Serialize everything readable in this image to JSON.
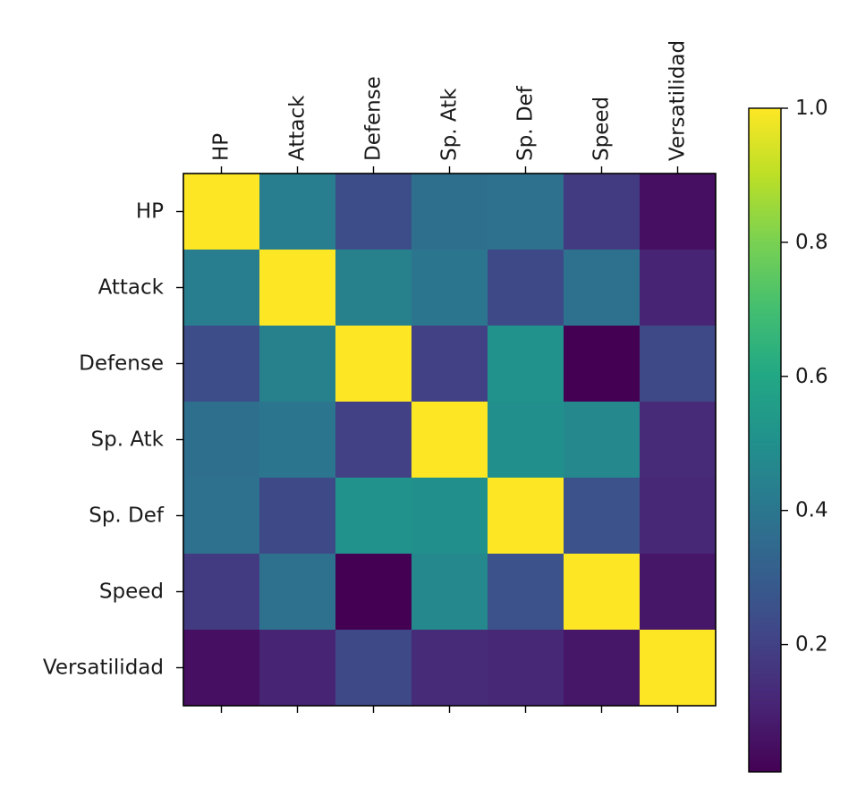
{
  "chart_data": {
    "type": "heatmap",
    "variables": [
      "HP",
      "Attack",
      "Defense",
      "Sp. Atk",
      "Sp. Def",
      "Speed",
      "Versatilidad"
    ],
    "values": [
      [
        1.0,
        0.43,
        0.24,
        0.37,
        0.38,
        0.18,
        0.05
      ],
      [
        0.43,
        1.0,
        0.44,
        0.4,
        0.23,
        0.38,
        0.11
      ],
      [
        0.24,
        0.44,
        1.0,
        0.2,
        0.51,
        0.01,
        0.23
      ],
      [
        0.37,
        0.4,
        0.2,
        1.0,
        0.5,
        0.47,
        0.13
      ],
      [
        0.38,
        0.23,
        0.51,
        0.5,
        1.0,
        0.26,
        0.12
      ],
      [
        0.18,
        0.38,
        0.01,
        0.47,
        0.26,
        1.0,
        0.07
      ],
      [
        0.05,
        0.11,
        0.23,
        0.13,
        0.12,
        0.07,
        1.0
      ]
    ],
    "colormap": "viridis",
    "color_range": [
      0.01,
      1.0
    ],
    "colorbar": {
      "ticks": [
        0.2,
        0.4,
        0.6,
        0.8,
        1.0
      ],
      "tick_labels": [
        "0.2",
        "0.4",
        "0.6",
        "0.8",
        "1.0"
      ],
      "placement": "right"
    },
    "x_tick_labels_position": "top",
    "x_tick_label_rotation": "vertical",
    "grid": false,
    "title": "",
    "xlabel": "",
    "ylabel": ""
  }
}
